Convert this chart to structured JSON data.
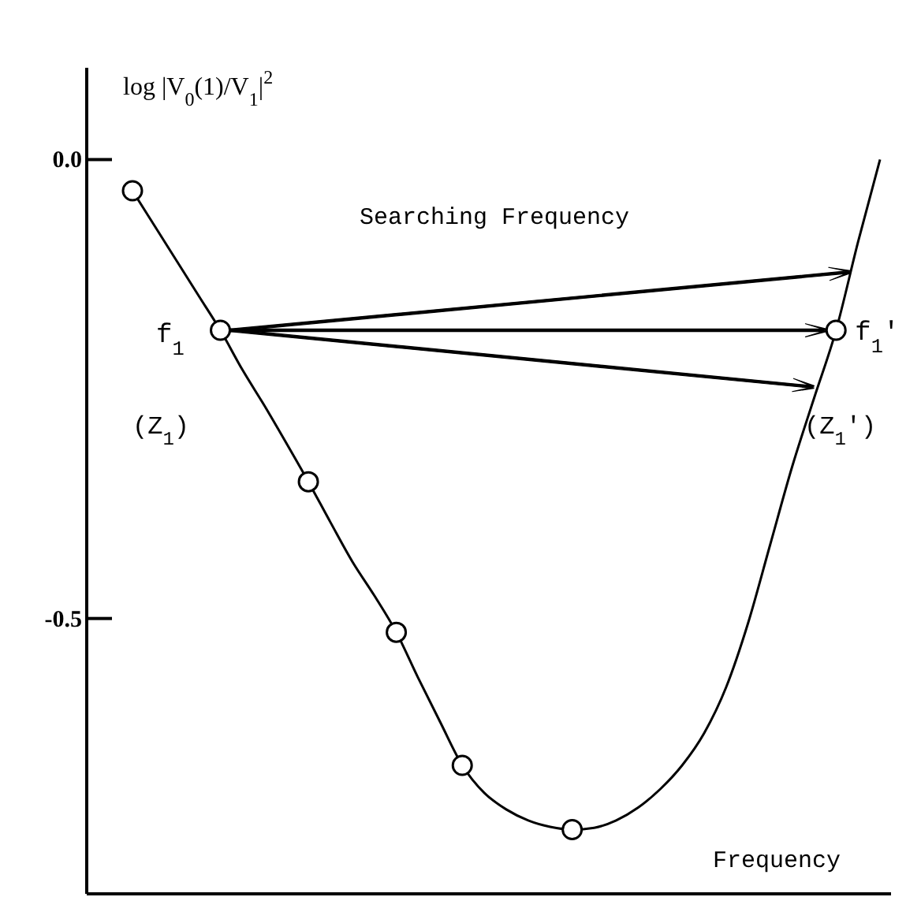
{
  "chart_data": {
    "type": "line",
    "ylabel": "log |V$_{0}$(1)/V$_{1}$|$^{2}$",
    "xlabel": "Frequency",
    "categories": [
      null,
      null,
      null,
      null,
      null,
      null,
      null,
      null,
      null,
      null,
      null,
      null,
      null,
      null,
      null,
      null,
      null,
      null,
      null,
      null,
      null,
      null,
      null,
      null,
      null,
      null,
      null,
      null,
      null,
      null,
      null,
      null,
      null,
      null,
      null
    ],
    "series": [
      {
        "color": "#000000",
        "marker": "none",
        "values": [
          -0.034,
          -0.072,
          -0.11,
          -0.148,
          -0.186,
          -0.229,
          -0.268,
          -0.309,
          -0.351,
          -0.395,
          -0.438,
          -0.475,
          -0.515,
          -0.565,
          -0.613,
          -0.66,
          -0.69,
          -0.708,
          -0.72,
          -0.727,
          -0.73,
          -0.728,
          -0.72,
          -0.706,
          -0.686,
          -0.66,
          -0.625,
          -0.575,
          -0.505,
          -0.42,
          -0.335,
          -0.26,
          -0.186,
          -0.09,
          0.0
        ]
      },
      {
        "type": "scatter",
        "color": "#000000",
        "marker": "circle",
        "values": [
          -0.034,
          null,
          null,
          null,
          -0.186,
          null,
          null,
          null,
          -0.351,
          null,
          null,
          null,
          -0.515,
          null,
          null,
          -0.66,
          null,
          null,
          null,
          null,
          -0.73,
          null,
          null,
          null,
          null,
          null,
          null,
          null,
          null,
          null,
          null,
          null,
          -0.186,
          null,
          null
        ]
      }
    ],
    "ylim": [
      -0.8,
      0.1
    ],
    "yticks": [
      {
        "value": 0,
        "label": "0.0"
      },
      {
        "value": -0.5,
        "label": "-0.5"
      }
    ],
    "tick_labels": "y",
    "annotations": [
      "Searching Frequency",
      "f$_{1}$",
      "(Z$_{1}$)",
      "f$_{1}$'",
      "(Z$_{1}$')"
    ]
  }
}
